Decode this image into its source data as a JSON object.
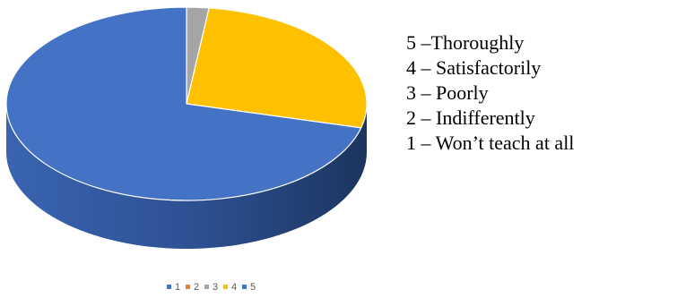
{
  "chart_data": {
    "type": "pie",
    "style": "3d",
    "categories": [
      "1",
      "2",
      "3",
      "4",
      "5"
    ],
    "values": [
      0,
      0,
      2,
      27,
      71
    ],
    "colors": [
      "#4472c4",
      "#ed7d31",
      "#a5a5a5",
      "#ffc000",
      "#4472c4"
    ],
    "legend_position": "bottom",
    "side_key": [
      "5 –Thoroughly",
      "4 – Satisfactorily",
      "3 – Poorly",
      "2 – Indifferently",
      "1 – Won’t teach at all"
    ]
  }
}
